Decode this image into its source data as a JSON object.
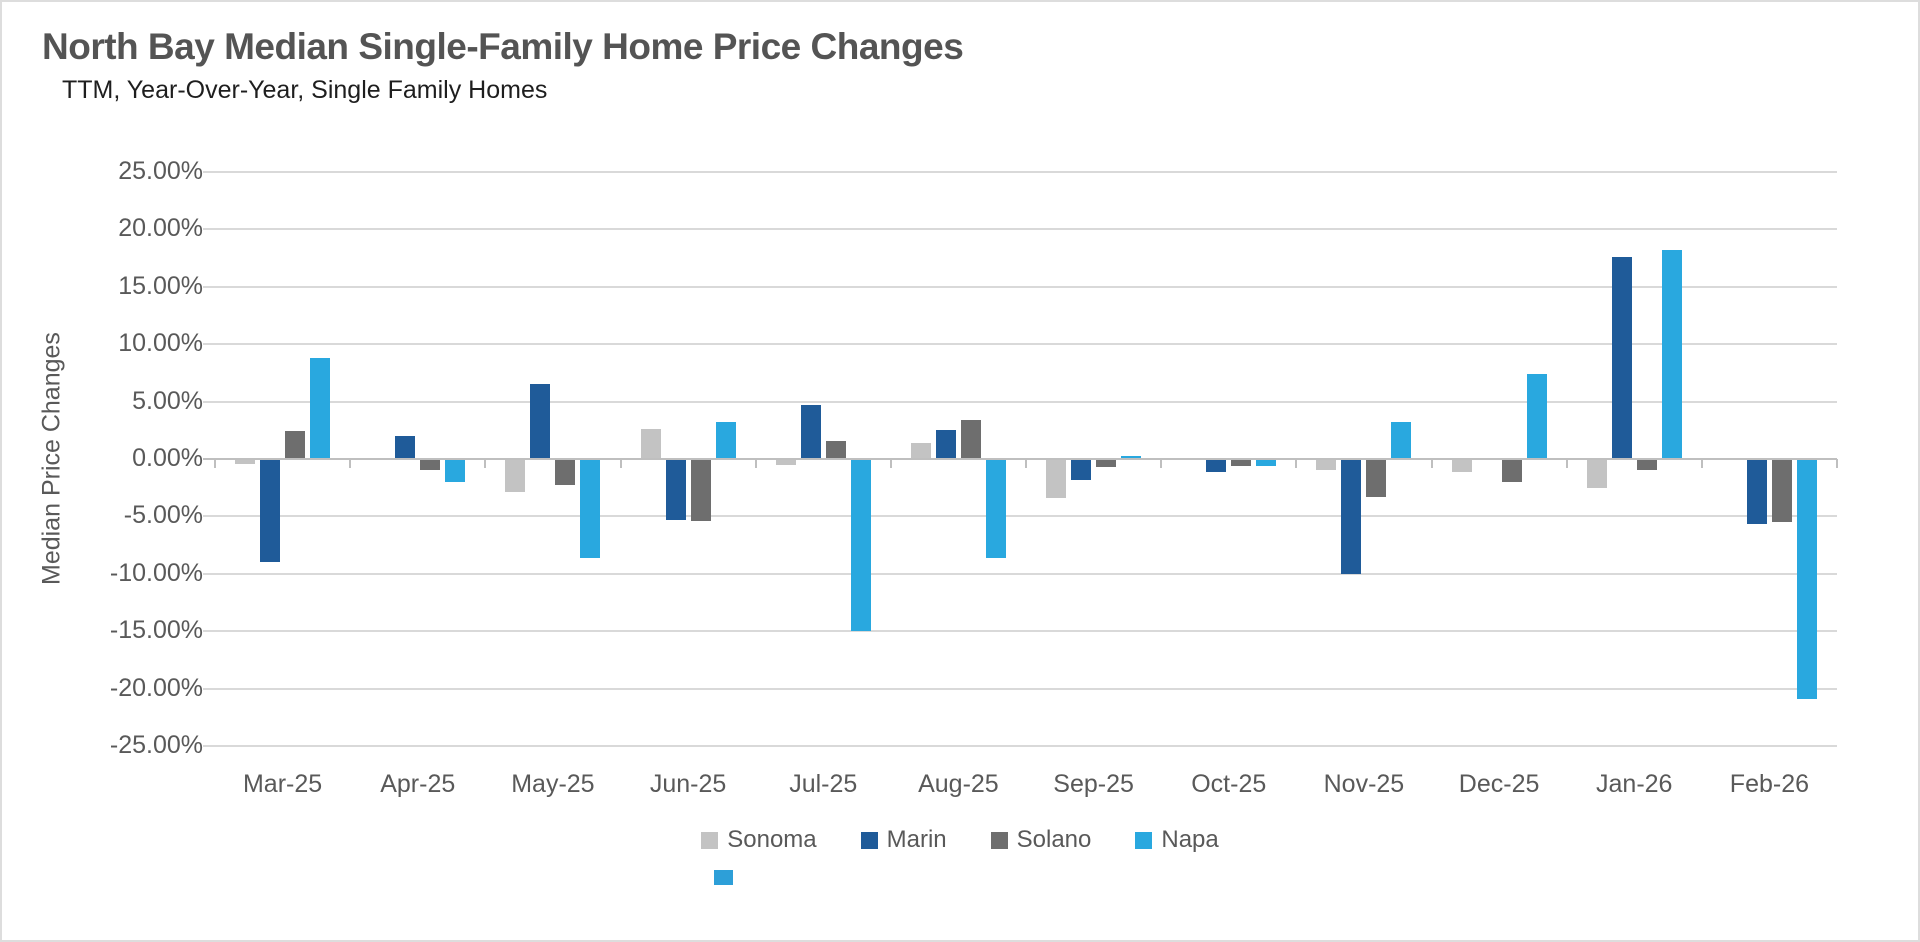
{
  "chart_data": {
    "type": "bar",
    "title": "North Bay Median Single-Family Home Price Changes",
    "subtitle": "TTM, Year-Over-Year, Single Family Homes",
    "ylabel": "Median Price Changes",
    "xlabel": "",
    "ylim": [
      -25,
      25
    ],
    "y_tick_step": 5,
    "y_ticks": [
      "25.00%",
      "20.00%",
      "15.00%",
      "10.00%",
      "5.00%",
      "0.00%",
      "-5.00%",
      "-10.00%",
      "-15.00%",
      "-20.00%",
      "-25.00%"
    ],
    "grid": true,
    "legend_position": "bottom-center",
    "categories": [
      "Mar-25",
      "Apr-25",
      "May-25",
      "Jun-25",
      "Jul-25",
      "Aug-25",
      "Sep-25",
      "Oct-25",
      "Nov-25",
      "Dec-25",
      "Jan-26",
      "Feb-26"
    ],
    "series": [
      {
        "name": "Sonoma",
        "color": "#c3c3c3",
        "values": [
          -0.4,
          0.0,
          -2.9,
          2.6,
          -0.5,
          1.4,
          -3.4,
          0.0,
          -1.0,
          -1.1,
          -2.5,
          0.0
        ]
      },
      {
        "name": "Marin",
        "color": "#1f5b99",
        "values": [
          -9.0,
          2.0,
          6.5,
          -5.3,
          4.7,
          2.5,
          -1.8,
          -1.1,
          -10.0,
          0.0,
          17.6,
          -5.7
        ]
      },
      {
        "name": "Solano",
        "color": "#6e6e6e",
        "values": [
          2.4,
          -1.0,
          -2.3,
          -5.4,
          1.6,
          3.4,
          -0.7,
          -0.6,
          -3.3,
          -2.0,
          -1.0,
          -5.5
        ]
      },
      {
        "name": "Napa",
        "color": "#29a8df",
        "values": [
          8.8,
          -2.0,
          -8.6,
          3.2,
          -15.0,
          -8.6,
          0.3,
          -0.6,
          3.2,
          7.4,
          18.2,
          -20.9
        ]
      }
    ]
  },
  "colors": {
    "title": "#545454",
    "subtitle": "#1e1e1e",
    "axis_text": "#595959",
    "gridline": "#d9d9d9",
    "axis_line": "#bfbfbf",
    "background": "#ffffff",
    "frame_border": "#dddddd",
    "artifact_blue": "#2d9fd8"
  }
}
